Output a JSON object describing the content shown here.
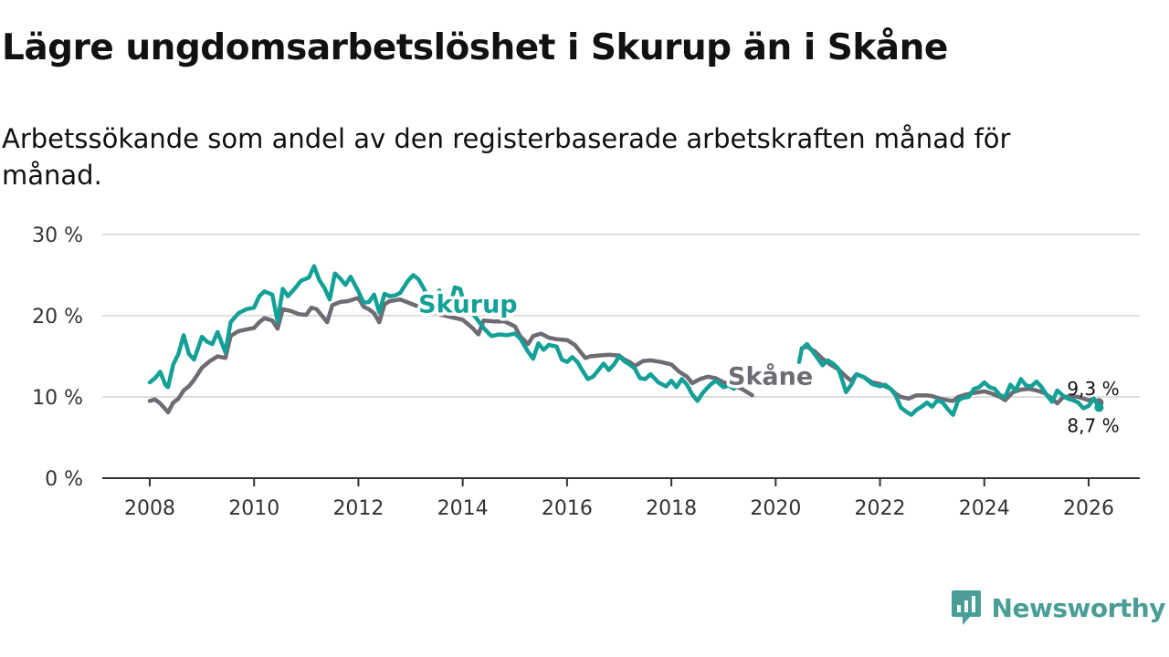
{
  "brand": {
    "name": "Newsworthy",
    "color": "#4a9e96"
  },
  "chart_data": {
    "type": "line",
    "title": "Lägre ungdomsarbetslöshet i Skurup än i Skåne",
    "subtitle": "Arbetssökande som andel av den registerbaserade arbetskraften månad för månad.",
    "xlabel": "",
    "ylabel": "",
    "xlim": [
      2008,
      2026.2
    ],
    "ylim": [
      0,
      30
    ],
    "yticks": [
      0,
      10,
      20,
      30
    ],
    "ytick_labels": [
      "0 %",
      "10 %",
      "20 %",
      "30 %"
    ],
    "xticks": [
      2008,
      2010,
      2012,
      2014,
      2016,
      2018,
      2020,
      2022,
      2024,
      2026
    ],
    "xtick_labels": [
      "2008",
      "2010",
      "2012",
      "2014",
      "2016",
      "2018",
      "2020",
      "2022",
      "2024",
      "2026"
    ],
    "grid": true,
    "series": [
      {
        "name": "Skåne",
        "color": "#6e6b73",
        "end_label": "9,3 %",
        "points": [
          [
            2008.0,
            9.5
          ],
          [
            2008.1,
            9.7
          ],
          [
            2008.2,
            9.2
          ],
          [
            2008.3,
            8.5
          ],
          [
            2008.35,
            8.1
          ],
          [
            2008.45,
            9.3
          ],
          [
            2008.55,
            9.8
          ],
          [
            2008.65,
            10.8
          ],
          [
            2008.75,
            11.3
          ],
          [
            2008.85,
            12.1
          ],
          [
            2009.0,
            13.6
          ],
          [
            2009.15,
            14.4
          ],
          [
            2009.3,
            15.0
          ],
          [
            2009.45,
            14.8
          ],
          [
            2009.55,
            17.5
          ],
          [
            2009.7,
            18.1
          ],
          [
            2009.85,
            18.3
          ],
          [
            2010.0,
            18.5
          ],
          [
            2010.1,
            19.2
          ],
          [
            2010.2,
            19.7
          ],
          [
            2010.35,
            19.4
          ],
          [
            2010.45,
            18.4
          ],
          [
            2010.55,
            20.8
          ],
          [
            2010.7,
            20.6
          ],
          [
            2010.85,
            20.2
          ],
          [
            2011.0,
            20.1
          ],
          [
            2011.1,
            21.0
          ],
          [
            2011.2,
            20.8
          ],
          [
            2011.3,
            20.0
          ],
          [
            2011.4,
            19.2
          ],
          [
            2011.5,
            21.3
          ],
          [
            2011.65,
            21.7
          ],
          [
            2011.8,
            21.8
          ],
          [
            2012.0,
            22.2
          ],
          [
            2012.1,
            21.1
          ],
          [
            2012.2,
            20.8
          ],
          [
            2012.3,
            20.3
          ],
          [
            2012.4,
            19.2
          ],
          [
            2012.5,
            21.4
          ],
          [
            2012.6,
            21.8
          ],
          [
            2012.8,
            22.0
          ],
          [
            2013.0,
            21.5
          ],
          [
            2013.2,
            21.0
          ],
          [
            2013.4,
            20.6
          ],
          [
            2013.6,
            20.1
          ],
          [
            2013.8,
            19.8
          ],
          [
            2014.0,
            19.5
          ],
          [
            2014.2,
            18.4
          ],
          [
            2014.3,
            17.7
          ],
          [
            2014.4,
            19.4
          ],
          [
            2014.6,
            19.3
          ],
          [
            2014.8,
            19.3
          ],
          [
            2015.0,
            18.7
          ],
          [
            2015.1,
            17.5
          ],
          [
            2015.25,
            16.5
          ],
          [
            2015.35,
            17.5
          ],
          [
            2015.5,
            17.8
          ],
          [
            2015.65,
            17.3
          ],
          [
            2015.8,
            17.1
          ],
          [
            2016.0,
            17.0
          ],
          [
            2016.15,
            16.4
          ],
          [
            2016.25,
            15.6
          ],
          [
            2016.35,
            14.8
          ],
          [
            2016.45,
            15.0
          ],
          [
            2016.6,
            15.1
          ],
          [
            2016.8,
            15.2
          ],
          [
            2017.0,
            15.1
          ],
          [
            2017.1,
            14.6
          ],
          [
            2017.2,
            14.3
          ],
          [
            2017.3,
            13.8
          ],
          [
            2017.45,
            14.4
          ],
          [
            2017.6,
            14.5
          ],
          [
            2017.8,
            14.3
          ],
          [
            2018.0,
            14.0
          ],
          [
            2018.15,
            13.1
          ],
          [
            2018.3,
            12.5
          ],
          [
            2018.4,
            11.7
          ],
          [
            2018.55,
            12.2
          ],
          [
            2018.7,
            12.5
          ],
          [
            2018.85,
            12.3
          ],
          [
            2019.0,
            11.8
          ],
          [
            2019.15,
            11.5
          ],
          [
            2019.35,
            11.0
          ],
          [
            2019.55,
            10.2
          ],
          [
            2020.5,
            16.0
          ],
          [
            2020.6,
            16.2
          ],
          [
            2020.75,
            15.6
          ],
          [
            2020.9,
            14.7
          ],
          [
            2021.05,
            14.0
          ],
          [
            2021.2,
            13.4
          ],
          [
            2021.35,
            12.5
          ],
          [
            2021.45,
            12.0
          ],
          [
            2021.55,
            12.8
          ],
          [
            2021.7,
            12.4
          ],
          [
            2021.85,
            11.8
          ],
          [
            2022.0,
            11.6
          ],
          [
            2022.2,
            11.0
          ],
          [
            2022.3,
            10.4
          ],
          [
            2022.4,
            10.0
          ],
          [
            2022.55,
            9.8
          ],
          [
            2022.7,
            10.2
          ],
          [
            2022.9,
            10.2
          ],
          [
            2023.0,
            10.1
          ],
          [
            2023.15,
            9.8
          ],
          [
            2023.3,
            9.6
          ],
          [
            2023.4,
            9.5
          ],
          [
            2023.5,
            10.0
          ],
          [
            2023.65,
            10.3
          ],
          [
            2023.8,
            10.5
          ],
          [
            2024.0,
            10.7
          ],
          [
            2024.15,
            10.4
          ],
          [
            2024.3,
            10.0
          ],
          [
            2024.4,
            9.6
          ],
          [
            2024.55,
            10.6
          ],
          [
            2024.7,
            10.9
          ],
          [
            2024.85,
            11.0
          ],
          [
            2025.0,
            10.8
          ],
          [
            2025.15,
            10.5
          ],
          [
            2025.3,
            9.8
          ],
          [
            2025.4,
            9.2
          ],
          [
            2025.5,
            9.9
          ],
          [
            2025.65,
            10.1
          ],
          [
            2025.8,
            10.0
          ],
          [
            2026.0,
            9.6
          ],
          [
            2026.1,
            9.7
          ],
          [
            2026.2,
            9.3
          ]
        ]
      },
      {
        "name": "Skurup",
        "color": "#13a197",
        "end_label": "8,7 %",
        "points": [
          [
            2008.0,
            11.8
          ],
          [
            2008.1,
            12.3
          ],
          [
            2008.2,
            13.1
          ],
          [
            2008.3,
            11.5
          ],
          [
            2008.35,
            11.2
          ],
          [
            2008.45,
            14.0
          ],
          [
            2008.55,
            15.3
          ],
          [
            2008.65,
            17.6
          ],
          [
            2008.75,
            15.3
          ],
          [
            2008.85,
            14.6
          ],
          [
            2009.0,
            17.4
          ],
          [
            2009.1,
            16.8
          ],
          [
            2009.2,
            16.5
          ],
          [
            2009.3,
            18.0
          ],
          [
            2009.45,
            15.5
          ],
          [
            2009.55,
            19.2
          ],
          [
            2009.7,
            20.3
          ],
          [
            2009.85,
            20.8
          ],
          [
            2010.0,
            21.0
          ],
          [
            2010.1,
            22.4
          ],
          [
            2010.2,
            23.0
          ],
          [
            2010.35,
            22.6
          ],
          [
            2010.45,
            19.3
          ],
          [
            2010.55,
            23.3
          ],
          [
            2010.65,
            22.4
          ],
          [
            2010.8,
            23.5
          ],
          [
            2010.9,
            24.3
          ],
          [
            2011.05,
            24.7
          ],
          [
            2011.15,
            26.1
          ],
          [
            2011.25,
            24.4
          ],
          [
            2011.35,
            23.4
          ],
          [
            2011.45,
            22.0
          ],
          [
            2011.55,
            25.2
          ],
          [
            2011.65,
            24.6
          ],
          [
            2011.75,
            23.8
          ],
          [
            2011.85,
            24.8
          ],
          [
            2012.0,
            23.0
          ],
          [
            2012.1,
            21.6
          ],
          [
            2012.2,
            21.7
          ],
          [
            2012.3,
            22.6
          ],
          [
            2012.4,
            20.4
          ],
          [
            2012.5,
            22.7
          ],
          [
            2012.6,
            22.4
          ],
          [
            2012.7,
            22.5
          ],
          [
            2012.8,
            22.8
          ],
          [
            2012.95,
            24.3
          ],
          [
            2013.05,
            25.0
          ],
          [
            2013.15,
            24.5
          ],
          [
            2013.25,
            23.4
          ],
          [
            2013.35,
            22.1
          ],
          [
            2013.45,
            21.8
          ],
          [
            2013.55,
            23.1
          ],
          [
            2013.65,
            22.2
          ],
          [
            2013.75,
            21.0
          ],
          [
            2013.85,
            23.5
          ],
          [
            2013.95,
            23.3
          ],
          [
            2014.05,
            21.0
          ],
          [
            2014.15,
            20.5
          ],
          [
            2014.25,
            19.8
          ],
          [
            2014.4,
            18.5
          ],
          [
            2014.55,
            17.5
          ],
          [
            2014.7,
            17.7
          ],
          [
            2014.85,
            17.6
          ],
          [
            2015.0,
            17.8
          ],
          [
            2015.1,
            17.2
          ],
          [
            2015.25,
            15.6
          ],
          [
            2015.35,
            14.7
          ],
          [
            2015.45,
            16.6
          ],
          [
            2015.55,
            15.8
          ],
          [
            2015.65,
            16.4
          ],
          [
            2015.8,
            16.2
          ],
          [
            2015.9,
            14.6
          ],
          [
            2016.0,
            14.3
          ],
          [
            2016.1,
            14.9
          ],
          [
            2016.2,
            14.3
          ],
          [
            2016.3,
            13.2
          ],
          [
            2016.4,
            12.2
          ],
          [
            2016.5,
            12.5
          ],
          [
            2016.6,
            13.3
          ],
          [
            2016.7,
            14.1
          ],
          [
            2016.8,
            13.3
          ],
          [
            2016.9,
            14.0
          ],
          [
            2017.0,
            15.0
          ],
          [
            2017.1,
            14.4
          ],
          [
            2017.2,
            14.0
          ],
          [
            2017.3,
            13.5
          ],
          [
            2017.4,
            12.3
          ],
          [
            2017.5,
            12.2
          ],
          [
            2017.6,
            12.8
          ],
          [
            2017.75,
            11.8
          ],
          [
            2017.9,
            11.3
          ],
          [
            2018.0,
            12.0
          ],
          [
            2018.1,
            11.2
          ],
          [
            2018.2,
            12.2
          ],
          [
            2018.3,
            11.5
          ],
          [
            2018.4,
            10.3
          ],
          [
            2018.5,
            9.5
          ],
          [
            2018.6,
            10.5
          ],
          [
            2018.75,
            11.5
          ],
          [
            2018.85,
            12.0
          ],
          [
            2019.0,
            11.2
          ],
          [
            2019.1,
            11.4
          ],
          [
            2019.2,
            11.0
          ],
          [
            2019.3,
            11.8
          ],
          [
            2019.35,
            12.0
          ],
          [
            2020.45,
            14.3
          ],
          [
            2020.5,
            15.9
          ],
          [
            2020.6,
            16.5
          ],
          [
            2020.7,
            15.7
          ],
          [
            2020.8,
            14.8
          ],
          [
            2020.9,
            13.9
          ],
          [
            2021.0,
            14.5
          ],
          [
            2021.1,
            14.1
          ],
          [
            2021.2,
            13.5
          ],
          [
            2021.3,
            11.6
          ],
          [
            2021.35,
            10.6
          ],
          [
            2021.45,
            11.5
          ],
          [
            2021.55,
            12.8
          ],
          [
            2021.7,
            12.4
          ],
          [
            2021.85,
            11.6
          ],
          [
            2022.0,
            11.3
          ],
          [
            2022.1,
            11.5
          ],
          [
            2022.2,
            11.0
          ],
          [
            2022.3,
            10.2
          ],
          [
            2022.4,
            8.7
          ],
          [
            2022.5,
            8.2
          ],
          [
            2022.6,
            7.8
          ],
          [
            2022.7,
            8.4
          ],
          [
            2022.8,
            8.8
          ],
          [
            2022.9,
            9.3
          ],
          [
            2023.0,
            8.8
          ],
          [
            2023.1,
            9.6
          ],
          [
            2023.2,
            9.3
          ],
          [
            2023.3,
            8.5
          ],
          [
            2023.4,
            7.8
          ],
          [
            2023.5,
            9.6
          ],
          [
            2023.6,
            9.9
          ],
          [
            2023.7,
            10.0
          ],
          [
            2023.8,
            11.0
          ],
          [
            2023.9,
            11.2
          ],
          [
            2024.0,
            11.8
          ],
          [
            2024.1,
            11.2
          ],
          [
            2024.2,
            11.0
          ],
          [
            2024.3,
            10.2
          ],
          [
            2024.4,
            10.0
          ],
          [
            2024.5,
            11.5
          ],
          [
            2024.6,
            10.8
          ],
          [
            2024.7,
            12.2
          ],
          [
            2024.8,
            11.4
          ],
          [
            2024.9,
            11.3
          ],
          [
            2025.0,
            11.9
          ],
          [
            2025.1,
            11.2
          ],
          [
            2025.2,
            10.2
          ],
          [
            2025.3,
            9.4
          ],
          [
            2025.4,
            10.8
          ],
          [
            2025.5,
            10.2
          ],
          [
            2025.6,
            9.8
          ],
          [
            2025.7,
            9.6
          ],
          [
            2025.8,
            9.3
          ],
          [
            2025.9,
            8.6
          ],
          [
            2026.0,
            8.9
          ],
          [
            2026.1,
            9.8
          ],
          [
            2026.2,
            8.7
          ]
        ]
      }
    ],
    "annotations": [
      {
        "text": "Skurup",
        "series": "Skurup",
        "x": 2014.1,
        "y": 20.4
      },
      {
        "text": "Skåne",
        "series": "Skåne",
        "x": 2019.9,
        "y": 11.5
      }
    ]
  }
}
